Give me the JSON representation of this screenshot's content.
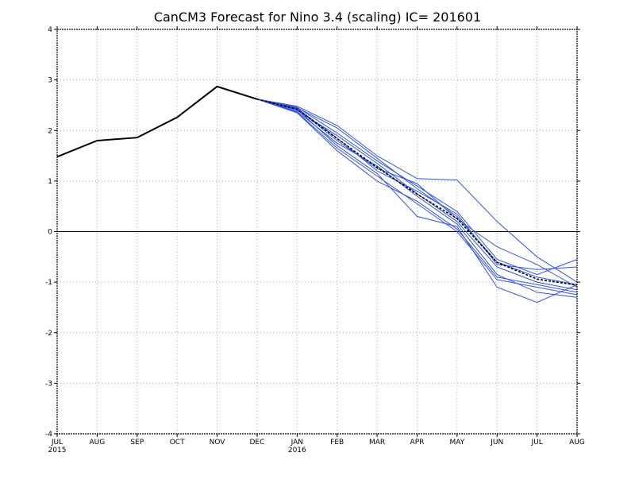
{
  "chart_data": {
    "type": "line",
    "title": "CanCM3 Forecast for Nino 3.4 (scaling) IC= 201601",
    "x_tick_labels": [
      "JUL",
      "AUG",
      "SEP",
      "OCT",
      "NOV",
      "DEC",
      "JAN",
      "FEB",
      "MAR",
      "APR",
      "MAY",
      "JUN",
      "JUL",
      "AUG"
    ],
    "x_year_labels": [
      {
        "index": 0,
        "label": "2015"
      },
      {
        "index": 6,
        "label": "2016"
      }
    ],
    "ylim": [
      -4,
      4
    ],
    "y_ticks": [
      -4,
      -3,
      -2,
      -1,
      0,
      1,
      2,
      3,
      4
    ],
    "grid": true,
    "grid_style": "dotted",
    "zero_line": true,
    "colors": {
      "observed": "#000000",
      "ensemble": "#3355dd",
      "mean": "#000000",
      "grid": "#aaaaaa",
      "axis": "#000000"
    },
    "observed": {
      "x_start": 0,
      "values": [
        1.48,
        1.8,
        1.86,
        2.26,
        2.87,
        2.62
      ]
    },
    "ensemble": {
      "x_start": 5,
      "members": [
        [
          2.62,
          2.45,
          2.05,
          1.45,
          0.85,
          0.3,
          -0.6,
          -0.9,
          -1.05
        ],
        [
          2.62,
          2.4,
          1.9,
          1.35,
          0.75,
          0.2,
          -0.7,
          -1.0,
          -1.15
        ],
        [
          2.62,
          2.35,
          1.6,
          1.0,
          0.6,
          0.05,
          -0.9,
          -1.05,
          -1.2
        ],
        [
          2.62,
          2.48,
          2.1,
          1.5,
          1.05,
          1.02,
          0.2,
          -0.5,
          -1.0
        ],
        [
          2.62,
          2.42,
          1.7,
          1.15,
          0.3,
          0.1,
          -1.1,
          -1.4,
          -1.05
        ],
        [
          2.62,
          2.38,
          1.75,
          1.3,
          0.7,
          0.15,
          -0.85,
          -1.2,
          -1.3
        ],
        [
          2.62,
          2.46,
          1.95,
          1.4,
          0.9,
          0.4,
          -0.55,
          -0.85,
          -0.55
        ],
        [
          2.62,
          2.44,
          1.85,
          1.2,
          0.8,
          0.35,
          -0.65,
          -0.75,
          -0.7
        ],
        [
          2.62,
          2.36,
          1.65,
          1.1,
          0.55,
          0.0,
          -0.95,
          -1.1,
          -1.25
        ],
        [
          2.62,
          2.43,
          1.8,
          1.25,
          0.95,
          0.25,
          -0.3,
          -0.65,
          -1.1
        ]
      ]
    },
    "ensemble_mean": {
      "x_start": 5,
      "values": [
        2.62,
        2.42,
        1.84,
        1.27,
        0.74,
        0.26,
        -0.61,
        -0.94,
        -1.06
      ]
    }
  }
}
